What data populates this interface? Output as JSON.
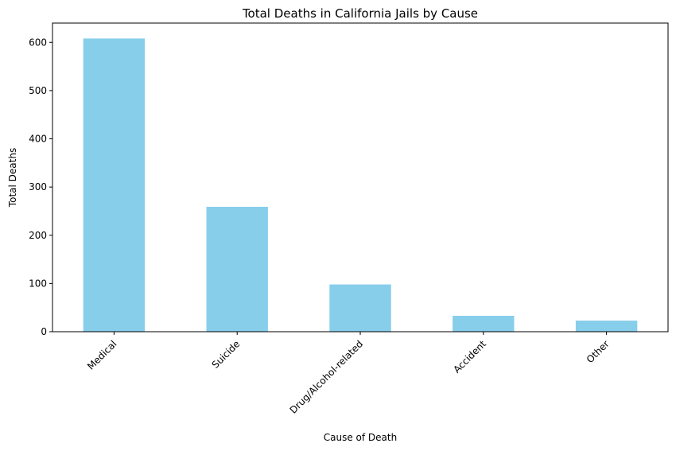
{
  "chart_data": {
    "type": "bar",
    "title": "Total Deaths in California Jails by Cause",
    "xlabel": "Cause of Death",
    "ylabel": "Total Deaths",
    "categories": [
      "Medical",
      "Suicide",
      "Drug/Alcohol-related",
      "Accident",
      "Other"
    ],
    "values": [
      608,
      259,
      98,
      33,
      23
    ],
    "ylim": [
      0,
      640
    ],
    "yticks": [
      0,
      100,
      200,
      300,
      400,
      500,
      600
    ],
    "bar_color": "#87CEEB",
    "grid": false,
    "legend": "none",
    "xtick_rotation_deg": 45
  }
}
